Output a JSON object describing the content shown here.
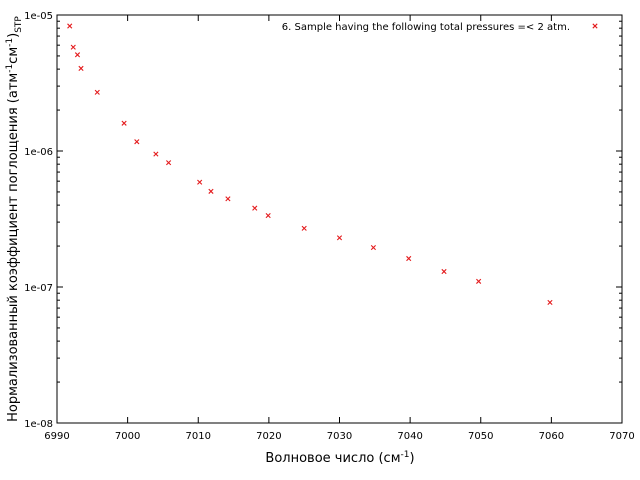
{
  "chart_data": {
    "type": "scatter",
    "xlabel": "Волновое число (см",
    "xlabel_sup": "-1",
    "xlabel_close": ")",
    "ylabel": "Нормализованный коэффициент поглощения (атм",
    "ylabel_sup1": "-1",
    "ylabel_mid": "см",
    "ylabel_sup2": "-1",
    "ylabel_close": ")",
    "ylabel_sub": "STP",
    "xlim": [
      6990,
      7070
    ],
    "ylim": [
      1e-08,
      1e-05
    ],
    "yscale": "log",
    "grid": false,
    "legend_position": "top-right",
    "x_ticks": [
      "6990",
      "7000",
      "7010",
      "7020",
      "7030",
      "7040",
      "7050",
      "7060",
      "7070"
    ],
    "x_tick_values": [
      6990,
      7000,
      7010,
      7020,
      7030,
      7040,
      7050,
      7060,
      7070
    ],
    "y_ticks": [
      "1e-08",
      "1e-07",
      "1e-06",
      "1e-05"
    ],
    "y_tick_values": [
      1e-08,
      1e-07,
      1e-06,
      1e-05
    ],
    "color": "#e41a1c",
    "series": [
      {
        "name": "6. Sample having the following total pressures =< 2 atm.",
        "marker": "x",
        "x": [
          6991.8,
          6992.3,
          6992.9,
          6993.4,
          6995.7,
          6999.5,
          7001.3,
          7004.0,
          7005.8,
          7010.2,
          7011.8,
          7014.2,
          7018.0,
          7019.9,
          7025.0,
          7030.0,
          7034.8,
          7039.8,
          7044.8,
          7049.7,
          7059.8
        ],
        "y": [
          8.3e-06,
          5.8e-06,
          5.1e-06,
          4.05e-06,
          2.7e-06,
          1.6e-06,
          1.17e-06,
          9.5e-07,
          8.2e-07,
          5.9e-07,
          5.05e-07,
          4.45e-07,
          3.8e-07,
          3.35e-07,
          2.7e-07,
          2.3e-07,
          1.95e-07,
          1.62e-07,
          1.3e-07,
          1.1e-07,
          7.7e-08
        ]
      }
    ]
  }
}
